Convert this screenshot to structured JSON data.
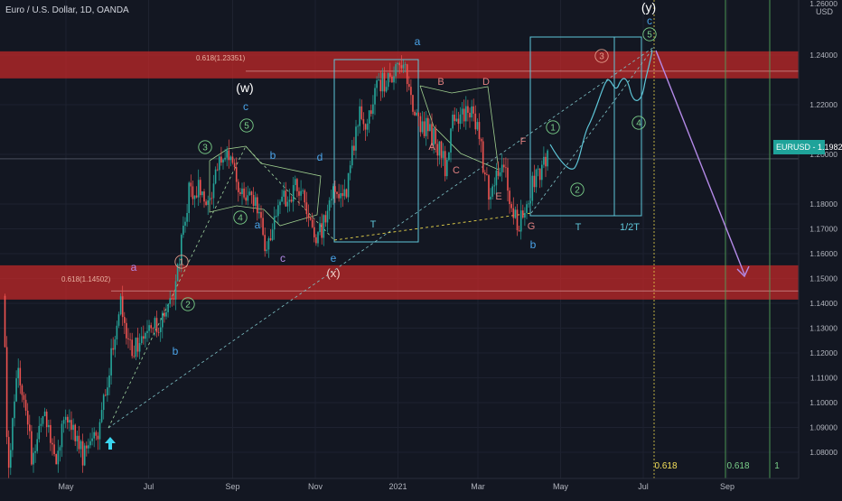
{
  "header": {
    "title": "Euro / U.S. Dollar, 1D, OANDA"
  },
  "price_axis": {
    "currency": "USD",
    "ticks": [
      "1.24000",
      "1.22000",
      "1.20000",
      "1.18000",
      "1.17000",
      "1.16000",
      "1.15000",
      "1.14000",
      "1.13000",
      "1.12000",
      "1.11000",
      "1.10000",
      "1.09000",
      "1.08000"
    ],
    "top_tick": "1.26000",
    "last_tag": {
      "symbol": "EURUSD",
      "price": "1.19822",
      "color": "#26a69a"
    }
  },
  "time_axis": {
    "ticks": [
      "May",
      "Jul",
      "Sep",
      "Nov",
      "2021",
      "Mar",
      "May",
      "Jul",
      "Sep"
    ]
  },
  "colors": {
    "background": "#131722",
    "grid": "#1e2230",
    "bull": "#26a69a",
    "bear": "#ef5350",
    "zone": "#c62828",
    "box": "#5ec6d8",
    "green": "#7bd08a",
    "blue": "#4aa3e8",
    "pink": "#e08080",
    "violet": "#b48ae8",
    "fib_yellow": "#f5e15a",
    "arrow_cyan": "#3ad6f0"
  },
  "zones": [
    {
      "label": "0.618(1.23351)",
      "from": 1.2306,
      "to": 1.2415
    },
    {
      "label": "0.618(1.14502)",
      "from": 1.1415,
      "to": 1.1553
    }
  ],
  "annotations": {
    "wave_w": "(w)",
    "wave_x": "(x)",
    "wave_y": "(y)",
    "c": "c",
    "a": "a",
    "b": "b",
    "d": "d",
    "e": "e",
    "A": "A",
    "B": "B",
    "C": "C",
    "D": "D",
    "E": "E",
    "F": "F",
    "G": "G",
    "n1": "1",
    "n2": "2",
    "n3": "3",
    "n4": "4",
    "n5": "5",
    "T": "T",
    "half_T": "1/2T"
  },
  "fib_time": [
    "0.618",
    "0.618",
    "1"
  ],
  "chart_data": {
    "type": "candlestick",
    "title": "Euro / U.S. Dollar, 1D, OANDA",
    "symbol": "EURUSD",
    "last_price": 1.19822,
    "ylim": [
      1.07,
      1.26
    ],
    "xlim": [
      "2020-03-16",
      "2021-10-09"
    ],
    "xticks": [
      "2020-05-01",
      "2020-07-01",
      "2020-09-01",
      "2020-11-01",
      "2021-01-01",
      "2021-03-01",
      "2021-05-01",
      "2021-07-01",
      "2021-09-01"
    ],
    "grid": true,
    "price_path": [
      [
        "2020-03-16",
        1.143
      ],
      [
        "2020-03-19",
        1.072
      ],
      [
        "2020-03-27",
        1.114
      ],
      [
        "2020-04-06",
        1.078
      ],
      [
        "2020-04-15",
        1.097
      ],
      [
        "2020-04-24",
        1.076
      ],
      [
        "2020-05-01",
        1.098
      ],
      [
        "2020-05-14",
        1.078
      ],
      [
        "2020-05-25",
        1.089
      ],
      [
        "2020-06-10",
        1.141
      ],
      [
        "2020-06-19",
        1.119
      ],
      [
        "2020-06-29",
        1.131
      ],
      [
        "2020-07-08",
        1.131
      ],
      [
        "2020-07-20",
        1.146
      ],
      [
        "2020-07-31",
        1.186
      ],
      [
        "2020-08-06",
        1.187
      ],
      [
        "2020-08-13",
        1.176
      ],
      [
        "2020-08-19",
        1.193
      ],
      [
        "2020-08-31",
        1.201
      ],
      [
        "2020-09-10",
        1.178
      ],
      [
        "2020-09-15",
        1.187
      ],
      [
        "2020-09-25",
        1.164
      ],
      [
        "2020-10-09",
        1.182
      ],
      [
        "2020-10-21",
        1.188
      ],
      [
        "2020-11-02",
        1.164
      ],
      [
        "2020-11-13",
        1.183
      ],
      [
        "2020-11-23",
        1.184
      ],
      [
        "2020-12-04",
        1.217
      ],
      [
        "2020-12-10",
        1.212
      ],
      [
        "2020-12-17",
        1.227
      ],
      [
        "2021-01-06",
        1.235
      ],
      [
        "2021-01-13",
        1.214
      ],
      [
        "2021-01-20",
        1.212
      ],
      [
        "2021-01-28",
        1.207
      ],
      [
        "2021-02-05",
        1.195
      ],
      [
        "2021-02-11",
        1.214
      ],
      [
        "2021-02-25",
        1.22
      ],
      [
        "2021-03-09",
        1.184
      ],
      [
        "2021-03-18",
        1.198
      ],
      [
        "2021-03-31",
        1.17
      ],
      [
        "2021-04-12",
        1.191
      ],
      [
        "2021-04-22",
        1.199
      ]
    ],
    "series": [
      {
        "name": "EURUSD",
        "style": "candles"
      }
    ]
  }
}
